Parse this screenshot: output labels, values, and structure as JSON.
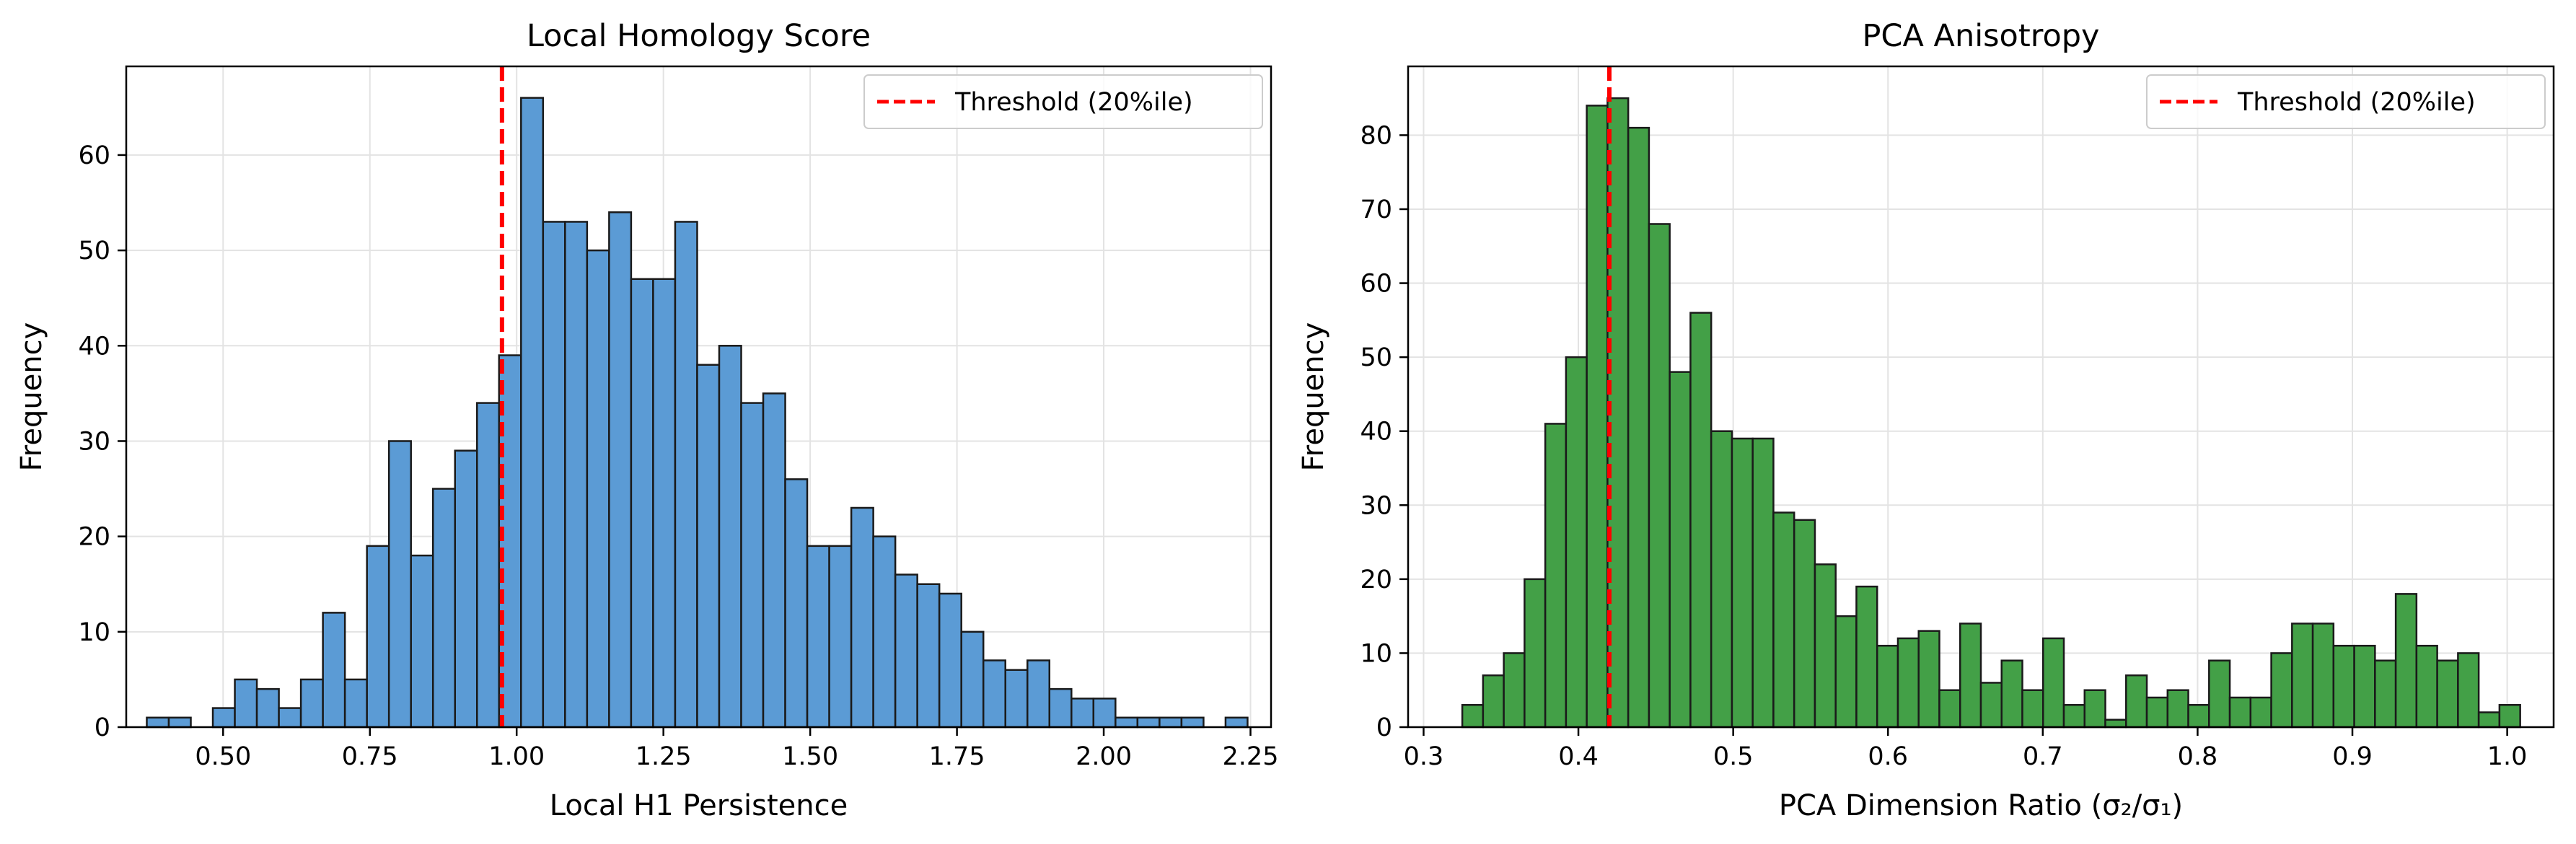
{
  "chart_data": [
    {
      "type": "bar",
      "title": "Local Homology Score",
      "xlabel": "Local H1 Persistence",
      "ylabel": "Frequency",
      "xlim": [
        0.335,
        2.285
      ],
      "ylim": [
        0,
        69.3
      ],
      "xticks": [
        0.5,
        0.75,
        1.0,
        1.25,
        1.5,
        1.75,
        2.0,
        2.25
      ],
      "xtick_labels": [
        "0.50",
        "0.75",
        "1.00",
        "1.25",
        "1.50",
        "1.75",
        "2.00",
        "2.25"
      ],
      "yticks": [
        0,
        10,
        20,
        30,
        40,
        50,
        60
      ],
      "ytick_labels": [
        "0",
        "10",
        "20",
        "30",
        "40",
        "50",
        "60"
      ],
      "grid": true,
      "bar_color": "#5b9bd5",
      "bin_start": 0.37,
      "bin_width": 0.0375,
      "values": [
        1,
        1,
        0,
        2,
        5,
        4,
        2,
        5,
        12,
        5,
        19,
        30,
        18,
        25,
        29,
        34,
        39,
        66,
        53,
        53,
        50,
        54,
        47,
        47,
        53,
        38,
        40,
        34,
        35,
        26,
        19,
        19,
        23,
        20,
        16,
        15,
        14,
        10,
        7,
        6,
        7,
        4,
        3,
        3,
        1,
        1,
        1,
        1,
        0,
        1
      ],
      "threshold": 0.975,
      "threshold_color": "#ff0000",
      "legend": {
        "label": "Threshold (20%ile)",
        "placement": "top-right"
      }
    },
    {
      "type": "bar",
      "title": "PCA Anisotropy",
      "xlabel": "PCA Dimension Ratio (σ₂/σ₁)",
      "ylabel": "Frequency",
      "xlim": [
        0.29,
        1.03
      ],
      "ylim": [
        0,
        89.3
      ],
      "xticks": [
        0.3,
        0.4,
        0.5,
        0.6,
        0.7,
        0.8,
        0.9,
        1.0
      ],
      "xtick_labels": [
        "0.3",
        "0.4",
        "0.5",
        "0.6",
        "0.7",
        "0.8",
        "0.9",
        "1.0"
      ],
      "yticks": [
        0,
        10,
        20,
        30,
        40,
        50,
        60,
        70,
        80
      ],
      "ytick_labels": [
        "0",
        "10",
        "20",
        "30",
        "40",
        "50",
        "60",
        "70",
        "80"
      ],
      "grid": true,
      "bar_color": "#43a047",
      "bin_start": 0.325,
      "bin_width": 0.0134,
      "values": [
        3,
        7,
        10,
        20,
        41,
        50,
        84,
        85,
        81,
        68,
        48,
        56,
        40,
        39,
        39,
        29,
        28,
        22,
        15,
        19,
        11,
        12,
        13,
        5,
        14,
        6,
        9,
        5,
        12,
        3,
        5,
        1,
        7,
        4,
        5,
        3,
        9,
        4,
        4,
        10,
        14,
        14,
        11,
        11,
        9,
        18,
        11,
        9,
        10,
        2,
        3
      ],
      "threshold": 0.42,
      "threshold_color": "#ff0000",
      "legend": {
        "label": "Threshold (20%ile)",
        "placement": "top-right"
      }
    }
  ]
}
